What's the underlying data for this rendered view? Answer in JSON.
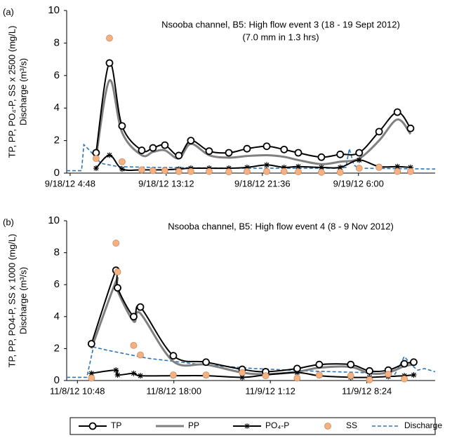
{
  "chart_data": [
    {
      "type": "line",
      "panel_label": "(a)",
      "title": "Nsooba channel, B5: High flow event 3 (18 - 19 Sept 2012)",
      "subtitle": "(7.0 mm in 1.3 hrs)",
      "ylabel": [
        "TP, PP, PO₄-P, SS x 2500 (mg/L)",
        "Discharge (m³/s)"
      ],
      "xlim": [
        4.5,
        36.7
      ],
      "ylim": [
        0,
        10
      ],
      "yticks": [
        0,
        2,
        4,
        6,
        8,
        10
      ],
      "xticks": [
        {
          "value": 4.8,
          "label": "9/18/12 4:48"
        },
        {
          "value": 13.2,
          "label": "9/18/12 13:12"
        },
        {
          "value": 21.6,
          "label": "9/18/12 21:36"
        },
        {
          "value": 30,
          "label": "9/19/12 6:00"
        }
      ],
      "series": [
        {
          "name": "TP",
          "color": "#000000",
          "marker": "circle",
          "linestyle": "solid",
          "smooth": true,
          "x": [
            7.07,
            8.24,
            9.34,
            11.06,
            12.04,
            13.08,
            14.3,
            15.35,
            16.95,
            18.67,
            20.26,
            21.98,
            23.5,
            24.74,
            26.76,
            28.4,
            30.06,
            31.8,
            33.4,
            34.55
          ],
          "values": [
            1.25,
            6.77,
            2.9,
            1.4,
            1.55,
            1.72,
            1.08,
            2.0,
            1.35,
            1.25,
            1.5,
            1.65,
            1.45,
            1.25,
            0.98,
            1.15,
            1.25,
            2.55,
            3.75,
            2.75
          ]
        },
        {
          "name": "PP",
          "color": "#808080",
          "marker": "none",
          "linestyle": "solid",
          "smooth": true,
          "x": [
            7.07,
            8.24,
            9.34,
            11.06,
            12.04,
            13.08,
            14.3,
            15.35,
            16.95,
            18.67,
            20.26,
            21.98,
            23.5,
            24.74,
            26.76,
            28.4,
            30.06,
            31.8,
            33.4,
            34.55
          ],
          "values": [
            1.0,
            5.7,
            2.5,
            1.1,
            1.3,
            1.4,
            0.9,
            1.8,
            1.1,
            0.95,
            1.05,
            1.1,
            1.0,
            0.8,
            0.55,
            0.7,
            0.9,
            2.0,
            3.3,
            2.4
          ]
        },
        {
          "name": "PO₄-P",
          "color": "#000000",
          "marker": "star",
          "linestyle": "solid",
          "smooth": true,
          "x": [
            7.07,
            8.24,
            9.34,
            11.06,
            12.04,
            13.08,
            14.3,
            15.35,
            16.95,
            18.67,
            20.26,
            21.98,
            23.5,
            24.74,
            26.76,
            28.4,
            30.06,
            31.8,
            33.4,
            34.55
          ],
          "values": [
            0.3,
            1.1,
            0.25,
            0.2,
            0.2,
            0.2,
            0.25,
            0.3,
            0.3,
            0.3,
            0.35,
            0.5,
            0.35,
            0.4,
            0.35,
            0.35,
            0.8,
            0.4,
            0.4,
            0.35
          ]
        },
        {
          "name": "SS",
          "color": "#f4b183",
          "marker": "dot",
          "linestyle": "none",
          "smooth": false,
          "x": [
            7.07,
            8.24,
            9.34,
            11.06,
            12.04,
            13.08,
            14.3,
            15.35,
            16.95,
            18.67,
            20.26,
            21.98,
            23.5,
            24.74,
            26.76,
            28.4,
            30.06,
            31.8,
            33.4,
            34.55
          ],
          "values": [
            0.9,
            8.3,
            0.7,
            0.2,
            0.15,
            0.15,
            0.1,
            0.1,
            0.1,
            0.08,
            0.1,
            0.1,
            0.1,
            0.08,
            0.05,
            0.05,
            0.3,
            0.35,
            0.1,
            0.1
          ]
        },
        {
          "name": "Discharge",
          "color": "#2e75b6",
          "marker": "none",
          "linestyle": "dashed",
          "smooth": false,
          "x": [
            4.5,
            5.8,
            6.0,
            6.5,
            7.5,
            9,
            12,
            20,
            28,
            28.9,
            29.2,
            29.6,
            30,
            36.7
          ],
          "values": [
            0.15,
            0.15,
            1.75,
            1.4,
            0.6,
            0.4,
            0.35,
            0.3,
            0.3,
            0.35,
            1.5,
            0.5,
            0.3,
            0.25
          ]
        }
      ]
    },
    {
      "type": "line",
      "panel_label": "(b)",
      "title": "Nsooba channel, B5: High flow event 4 (8 - 9 Nov 2012)",
      "ylabel": [
        "TP, PP, PO4-P, SS x 1000 (mg/L)",
        "Discharge (m³/s)"
      ],
      "xlim": [
        10.0,
        37.5
      ],
      "ylim": [
        0,
        10
      ],
      "yticks": [
        0,
        2,
        4,
        6,
        8,
        10
      ],
      "xticks": [
        {
          "value": 10.8,
          "label": "11/8/12 10:48"
        },
        {
          "value": 18,
          "label": "11/8/12 18:00"
        },
        {
          "value": 25.2,
          "label": "11/9/12 1:12"
        },
        {
          "value": 32.4,
          "label": "11/9/12 8:24"
        }
      ],
      "series": [
        {
          "name": "TP",
          "color": "#000000",
          "marker": "circle",
          "linestyle": "solid",
          "smooth": true,
          "x": [
            11.85,
            13.68,
            13.8,
            15.0,
            15.5,
            17.96,
            20.4,
            23.1,
            24.85,
            27.2,
            28.85,
            31.2,
            32.6,
            34.0,
            35.2,
            35.9
          ],
          "values": [
            2.3,
            6.9,
            5.8,
            4.0,
            4.6,
            1.55,
            1.15,
            0.7,
            0.55,
            0.75,
            1.0,
            1.0,
            0.6,
            0.65,
            1.05,
            1.15
          ]
        },
        {
          "name": "PP",
          "color": "#808080",
          "marker": "none",
          "linestyle": "solid",
          "smooth": true,
          "x": [
            11.85,
            13.68,
            13.8,
            15.0,
            15.5,
            17.96,
            20.4,
            23.1,
            24.85,
            27.2,
            28.85,
            31.2,
            32.6,
            34.0,
            35.2,
            35.9
          ],
          "values": [
            2.0,
            6.2,
            5.6,
            3.7,
            4.2,
            1.2,
            1.0,
            0.5,
            0.4,
            0.55,
            0.8,
            0.85,
            0.45,
            0.5,
            0.9,
            1.0
          ]
        },
        {
          "name": "PO4-P",
          "color": "#000000",
          "marker": "star",
          "linestyle": "solid",
          "smooth": true,
          "x": [
            11.85,
            13.68,
            13.8,
            15.0,
            15.5,
            17.96,
            20.4,
            23.1,
            24.85,
            27.2,
            28.85,
            31.2,
            32.6,
            34.0,
            35.2,
            35.9
          ],
          "values": [
            0.45,
            0.65,
            0.35,
            0.45,
            0.3,
            0.3,
            0.3,
            0.2,
            0.35,
            0.5,
            0.3,
            0.2,
            0.2,
            0.25,
            0.3,
            0.35
          ]
        },
        {
          "name": "SS",
          "color": "#f4b183",
          "marker": "dot",
          "linestyle": "none",
          "smooth": false,
          "x": [
            11.85,
            13.68,
            13.8,
            15.0,
            15.5,
            17.96,
            20.4,
            23.1,
            24.85,
            27.2,
            28.85,
            31.2,
            32.6,
            34.0,
            35.2
          ],
          "values": [
            0.15,
            8.6,
            6.8,
            2.2,
            1.6,
            0.35,
            0.35,
            0.5,
            0.3,
            0.15,
            0.35,
            0.3,
            0.05,
            0.4,
            0.1
          ]
        },
        {
          "name": "Discharge",
          "color": "#2e75b6",
          "marker": "none",
          "linestyle": "dashed",
          "smooth": false,
          "x": [
            10.0,
            11.5,
            12.0,
            13,
            16,
            20,
            24,
            28,
            32,
            34.5,
            35.2,
            35.7,
            36.2,
            36.7,
            37.5
          ],
          "values": [
            0.2,
            0.2,
            2.1,
            1.9,
            1.4,
            1.0,
            0.75,
            0.6,
            0.5,
            0.4,
            1.5,
            1.0,
            0.65,
            0.75,
            0.55
          ]
        }
      ]
    }
  ]
}
